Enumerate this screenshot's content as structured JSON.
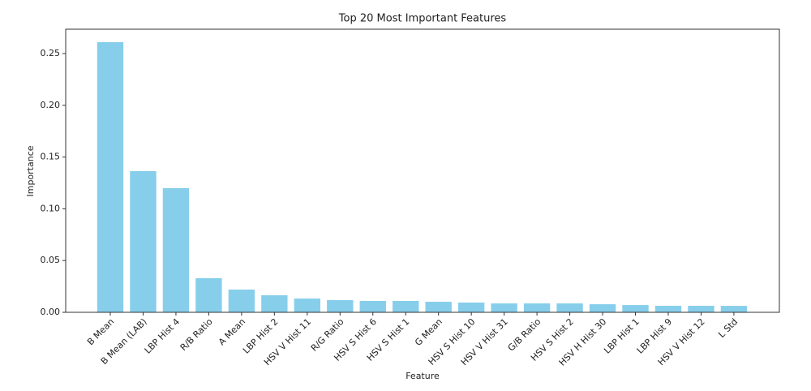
{
  "chart_data": {
    "type": "bar",
    "title": "Top 20 Most Important Features",
    "x_label": "Feature",
    "y_label": "Importance",
    "categories": [
      "B Mean",
      "B Mean (LAB)",
      "LBP Hist 4",
      "R/B Ratio",
      "A Mean",
      "LBP Hist 2",
      "HSV V Hist 11",
      "R/G Ratio",
      "HSV S Hist 6",
      "HSV S Hist 1",
      "G Mean",
      "HSV S Hist 10",
      "HSV V Hist 31",
      "G/B Ratio",
      "HSV S Hist 2",
      "HSV H Hist 30",
      "LBP Hist 1",
      "LBP Hist 9",
      "HSV V Hist 12",
      "L Std"
    ],
    "values": [
      0.261,
      0.1364,
      0.12,
      0.033,
      0.022,
      0.0165,
      0.0133,
      0.0118,
      0.011,
      0.011,
      0.0102,
      0.0094,
      0.0086,
      0.0086,
      0.0086,
      0.0078,
      0.007,
      0.0063,
      0.0063,
      0.0062
    ],
    "color": "#87ceeb",
    "ylim": [
      0,
      0.2735
    ],
    "yticks": [
      {
        "value": 0,
        "label": "0.00"
      },
      {
        "value": 0.05,
        "label": "0.05"
      },
      {
        "value": 0.1,
        "label": "0.10"
      },
      {
        "value": 0.15,
        "label": "0.15"
      },
      {
        "value": 0.2,
        "label": "0.20"
      },
      {
        "value": 0.25,
        "label": "0.25"
      }
    ],
    "grid": false
  }
}
